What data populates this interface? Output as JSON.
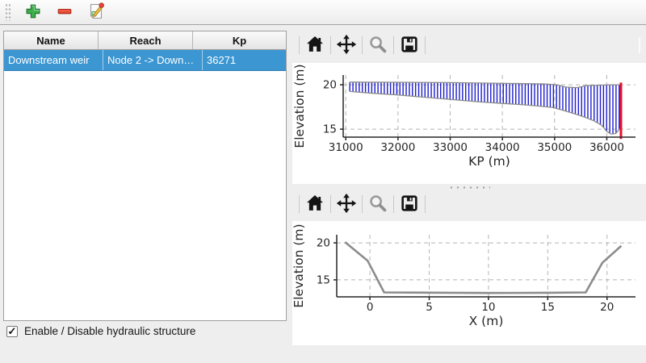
{
  "main_toolbar": {
    "icons": [
      "plus-icon",
      "minus-icon",
      "edit-document-icon"
    ]
  },
  "table": {
    "columns": [
      "Name",
      "Reach",
      "Kp"
    ],
    "rows": [
      {
        "name": "Downstream weir",
        "reach": "Node 2 -> Down…",
        "kp": "36271",
        "selected": true
      }
    ],
    "selection_color": "#3b96d2"
  },
  "checkbox": {
    "label": "Enable / Disable hydraulic structure",
    "checked": true
  },
  "charts": [
    {
      "name": "longitudinal-profile",
      "toolbar_icons": [
        "home-icon",
        "pan-icon",
        "zoom-icon",
        "save-icon"
      ],
      "chart_data": {
        "type": "line",
        "title": "",
        "xlabel": "KP (m)",
        "ylabel": "Elevation (m)",
        "xlim": [
          30950,
          36550
        ],
        "ylim": [
          14.1,
          21.1
        ],
        "xticks": [
          31000,
          32000,
          33000,
          34000,
          35000,
          36000
        ],
        "yticks": [
          15,
          20
        ],
        "grid": true,
        "band": {
          "hatch_color": "#1c1ccd",
          "edge_color": "#8a8a8a",
          "hatch_step_m": 60,
          "top_points": [
            [
              31077,
              20.3
            ],
            [
              33000,
              20.25
            ],
            [
              34800,
              20.1
            ],
            [
              35050,
              20.0
            ],
            [
              35200,
              19.75
            ],
            [
              35430,
              19.68
            ],
            [
              35600,
              19.9
            ],
            [
              35850,
              19.95
            ],
            [
              36100,
              20.0
            ],
            [
              36271,
              20.0
            ]
          ],
          "bed_points": [
            [
              31077,
              19.25
            ],
            [
              31500,
              19.05
            ],
            [
              32000,
              18.85
            ],
            [
              32500,
              18.6
            ],
            [
              33000,
              18.35
            ],
            [
              33500,
              18.1
            ],
            [
              34000,
              17.9
            ],
            [
              34400,
              17.75
            ],
            [
              34700,
              17.6
            ],
            [
              34950,
              17.45
            ],
            [
              35150,
              17.15
            ],
            [
              35400,
              16.7
            ],
            [
              35600,
              16.3
            ],
            [
              35750,
              15.95
            ],
            [
              35900,
              15.45
            ],
            [
              36000,
              14.75
            ],
            [
              36080,
              14.45
            ],
            [
              36170,
              14.5
            ],
            [
              36271,
              15.2
            ]
          ]
        },
        "marker": {
          "x": 36271,
          "color": "#e8112d",
          "y_top": 20.25,
          "y_bottom": 13.9
        }
      }
    },
    {
      "name": "cross-section",
      "toolbar_icons": [
        "home-icon",
        "pan-icon",
        "zoom-icon",
        "save-icon"
      ],
      "chart_data": {
        "type": "line",
        "title": "",
        "xlabel": "X (m)",
        "ylabel": "Elevation (m)",
        "xlim": [
          -2.8,
          22.4
        ],
        "ylim": [
          12.7,
          21.1
        ],
        "xticks": [
          0,
          5,
          10,
          15,
          20
        ],
        "yticks": [
          15,
          20
        ],
        "grid": true,
        "series": [
          {
            "name": "cross-section-line",
            "color": "#8c8c8c",
            "width": 2.6,
            "points": [
              [
                -2.1,
                20.1
              ],
              [
                -0.2,
                17.6
              ],
              [
                1.2,
                13.3
              ],
              [
                5,
                13.27
              ],
              [
                10,
                13.22
              ],
              [
                15,
                13.25
              ],
              [
                18.2,
                13.3
              ],
              [
                19.6,
                17.3
              ],
              [
                21.2,
                19.6
              ]
            ]
          }
        ]
      }
    }
  ]
}
